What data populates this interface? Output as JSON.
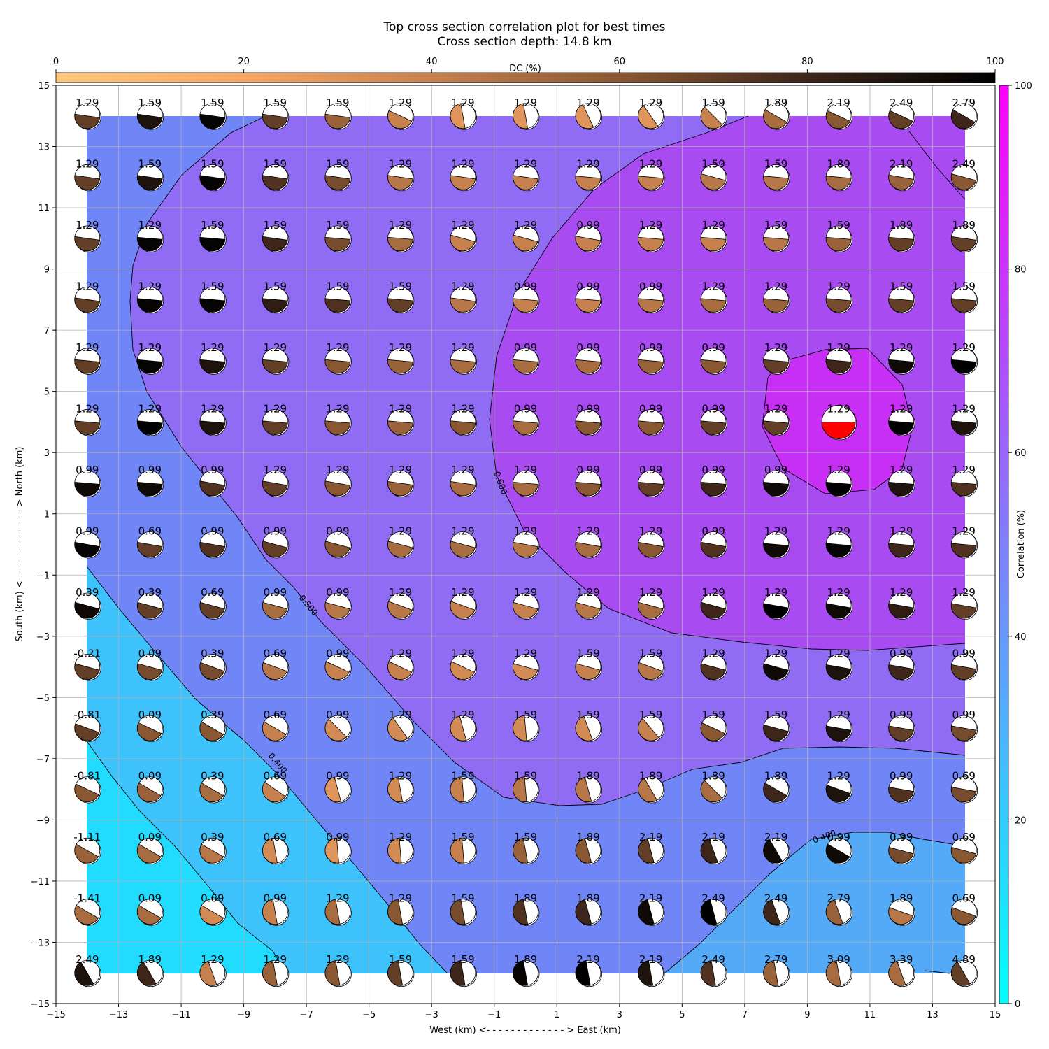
{
  "chart_data": {
    "type": "heatmap",
    "title": "Top cross section correlation plot for best times",
    "subtitle": "Cross section depth: 14.8 km",
    "xlabel": "West (km) <- - - - - - - - - - - - - > East (km)",
    "ylabel": "South (km) <- - - - - - - - - - - - > North (km)",
    "xlim": [
      -15,
      15
    ],
    "ylim": [
      -15,
      15
    ],
    "xticks": [
      "−15",
      "−13",
      "−11",
      "−9",
      "−7",
      "−5",
      "−3",
      "−1",
      "1",
      "3",
      "5",
      "7",
      "9",
      "11",
      "13",
      "15"
    ],
    "yticks": [
      "−15",
      "−13",
      "−11",
      "−9",
      "−7",
      "−5",
      "−3",
      "−1",
      "1",
      "3",
      "5",
      "7",
      "9",
      "11",
      "13",
      "15"
    ],
    "grid": true,
    "x": [
      -14,
      -12,
      -10,
      -8,
      -6,
      -4,
      -2,
      0,
      2,
      4,
      6,
      8,
      10,
      12,
      14
    ],
    "y": [
      14,
      12,
      10,
      8,
      6,
      4,
      2,
      0,
      -2,
      -4,
      -6,
      -8,
      -10,
      -12,
      -14
    ],
    "time_shift_labels": [
      [
        "1.29",
        "1.59",
        "1.59",
        "1.59",
        "1.59",
        "1.29",
        "1.29",
        "1.29",
        "1.29",
        "1.29",
        "1.59",
        "1.89",
        "2.19",
        "2.49",
        "2.79"
      ],
      [
        "1.29",
        "1.59",
        "1.59",
        "1.59",
        "1.59",
        "1.29",
        "1.29",
        "1.29",
        "1.29",
        "1.29",
        "1.59",
        "1.59",
        "1.89",
        "2.19",
        "2.49"
      ],
      [
        "1.29",
        "1.29",
        "1.59",
        "1.59",
        "1.59",
        "1.29",
        "1.29",
        "1.29",
        "0.99",
        "1.29",
        "1.29",
        "1.59",
        "1.59",
        "1.89",
        "1.89"
      ],
      [
        "1.29",
        "1.29",
        "1.59",
        "1.59",
        "1.59",
        "1.59",
        "1.29",
        "0.99",
        "0.99",
        "0.99",
        "1.29",
        "1.29",
        "1.29",
        "1.59",
        "1.59"
      ],
      [
        "1.29",
        "1.29",
        "1.29",
        "1.29",
        "1.29",
        "1.29",
        "1.29",
        "0.99",
        "0.99",
        "0.99",
        "0.99",
        "1.29",
        "1.29",
        "1.29",
        "1.29"
      ],
      [
        "1.29",
        "1.29",
        "1.29",
        "1.29",
        "1.29",
        "1.29",
        "1.29",
        "0.99",
        "0.99",
        "0.99",
        "0.99",
        "1.29",
        "1.29",
        "1.29",
        "1.29"
      ],
      [
        "0.99",
        "0.99",
        "0.99",
        "1.29",
        "1.29",
        "1.29",
        "1.29",
        "1.29",
        "0.99",
        "0.99",
        "0.99",
        "0.99",
        "1.29",
        "1.29",
        "1.29"
      ],
      [
        "0.99",
        "0.69",
        "0.99",
        "0.99",
        "0.99",
        "1.29",
        "1.29",
        "1.29",
        "1.29",
        "1.29",
        "0.99",
        "1.29",
        "1.29",
        "1.29",
        "1.29"
      ],
      [
        "0.39",
        "0.39",
        "0.69",
        "0.99",
        "0.99",
        "1.29",
        "1.29",
        "1.29",
        "1.29",
        "1.29",
        "1.29",
        "1.29",
        "1.29",
        "1.29",
        "1.29"
      ],
      [
        "-0.21",
        "0.09",
        "0.39",
        "0.69",
        "0.99",
        "1.29",
        "1.29",
        "1.29",
        "1.59",
        "1.59",
        "1.29",
        "1.29",
        "1.29",
        "0.99",
        "0.99"
      ],
      [
        "-0.81",
        "0.09",
        "0.39",
        "0.69",
        "0.99",
        "1.29",
        "1.29",
        "1.59",
        "1.59",
        "1.59",
        "1.59",
        "1.59",
        "1.29",
        "0.99",
        "0.99"
      ],
      [
        "-0.81",
        "0.09",
        "0.39",
        "0.69",
        "0.99",
        "1.29",
        "1.59",
        "1.59",
        "1.89",
        "1.89",
        "1.89",
        "1.89",
        "1.29",
        "0.99",
        "0.69"
      ],
      [
        "-1.11",
        "0.09",
        "0.39",
        "0.69",
        "0.99",
        "1.29",
        "1.59",
        "1.59",
        "1.89",
        "2.19",
        "2.19",
        "2.19",
        "0.99",
        "0.99",
        "0.69"
      ],
      [
        "-1.41",
        "0.09",
        "0.69",
        "0.99",
        "1.29",
        "1.29",
        "1.59",
        "1.89",
        "1.89",
        "2.19",
        "2.49",
        "2.49",
        "2.79",
        "1.89",
        "0.69"
      ],
      [
        "2.49",
        "1.89",
        "1.29",
        "1.29",
        "1.29",
        "1.59",
        "1.59",
        "1.89",
        "2.19",
        "2.19",
        "2.49",
        "2.79",
        "3.09",
        "3.39",
        "4.89"
      ]
    ],
    "dc_percent": [
      [
        70,
        90,
        98,
        70,
        55,
        40,
        30,
        30,
        30,
        30,
        40,
        50,
        60,
        70,
        80
      ],
      [
        70,
        90,
        98,
        75,
        65,
        45,
        40,
        40,
        40,
        40,
        45,
        45,
        50,
        55,
        60
      ],
      [
        70,
        98,
        98,
        80,
        65,
        50,
        40,
        40,
        40,
        40,
        40,
        45,
        55,
        70,
        70
      ],
      [
        70,
        98,
        98,
        85,
        75,
        70,
        45,
        40,
        40,
        45,
        50,
        55,
        65,
        70,
        70
      ],
      [
        70,
        98,
        90,
        70,
        60,
        55,
        50,
        50,
        50,
        55,
        60,
        70,
        80,
        95,
        100
      ],
      [
        70,
        100,
        90,
        70,
        60,
        55,
        60,
        50,
        60,
        60,
        70,
        70,
        0,
        100,
        90
      ],
      [
        95,
        95,
        75,
        70,
        60,
        55,
        50,
        50,
        60,
        70,
        80,
        95,
        100,
        90,
        75
      ],
      [
        98,
        70,
        75,
        70,
        60,
        50,
        50,
        45,
        50,
        60,
        75,
        95,
        98,
        80,
        75
      ],
      [
        95,
        70,
        70,
        50,
        45,
        45,
        40,
        40,
        45,
        50,
        80,
        100,
        95,
        85,
        70
      ],
      [
        70,
        65,
        65,
        45,
        40,
        40,
        35,
        35,
        40,
        45,
        75,
        95,
        90,
        80,
        70
      ],
      [
        70,
        60,
        60,
        40,
        35,
        35,
        35,
        35,
        35,
        40,
        60,
        80,
        90,
        70,
        65
      ],
      [
        60,
        55,
        50,
        40,
        30,
        35,
        40,
        45,
        45,
        45,
        50,
        80,
        90,
        75,
        65
      ],
      [
        55,
        50,
        45,
        35,
        30,
        35,
        40,
        55,
        60,
        70,
        80,
        95,
        95,
        65,
        60
      ],
      [
        50,
        50,
        35,
        40,
        50,
        60,
        65,
        75,
        80,
        95,
        100,
        80,
        55,
        45,
        60
      ],
      [
        90,
        80,
        40,
        55,
        60,
        70,
        80,
        98,
        100,
        90,
        75,
        55,
        50,
        50,
        70
      ]
    ],
    "fault_angle_deg": [
      [
        8,
        8,
        8,
        8,
        8,
        25,
        80,
        80,
        65,
        55,
        45,
        30,
        25,
        25,
        30
      ],
      [
        8,
        8,
        8,
        8,
        8,
        8,
        8,
        8,
        5,
        5,
        15,
        5,
        5,
        10,
        15
      ],
      [
        8,
        5,
        5,
        8,
        5,
        5,
        15,
        15,
        10,
        5,
        5,
        5,
        5,
        5,
        8
      ],
      [
        8,
        5,
        5,
        5,
        5,
        5,
        8,
        5,
        5,
        5,
        5,
        5,
        5,
        5,
        5
      ],
      [
        5,
        5,
        5,
        5,
        5,
        5,
        5,
        5,
        5,
        5,
        5,
        5,
        5,
        5,
        5
      ],
      [
        5,
        5,
        5,
        5,
        5,
        5,
        5,
        5,
        5,
        5,
        5,
        5,
        0,
        5,
        5
      ],
      [
        5,
        5,
        10,
        10,
        10,
        8,
        8,
        5,
        5,
        5,
        5,
        5,
        5,
        5,
        5
      ],
      [
        10,
        10,
        10,
        15,
        15,
        15,
        15,
        10,
        10,
        10,
        10,
        5,
        5,
        5,
        5
      ],
      [
        15,
        15,
        15,
        15,
        15,
        20,
        20,
        15,
        15,
        15,
        15,
        10,
        10,
        10,
        10
      ],
      [
        15,
        15,
        20,
        20,
        25,
        25,
        25,
        15,
        15,
        20,
        15,
        15,
        10,
        10,
        10
      ],
      [
        20,
        25,
        30,
        30,
        45,
        55,
        75,
        85,
        70,
        50,
        25,
        15,
        10,
        10,
        10
      ],
      [
        25,
        30,
        30,
        35,
        75,
        80,
        85,
        85,
        75,
        60,
        45,
        30,
        20,
        10,
        10
      ],
      [
        30,
        30,
        30,
        80,
        85,
        85,
        85,
        80,
        75,
        75,
        70,
        60,
        30,
        15,
        15
      ],
      [
        30,
        30,
        30,
        80,
        80,
        80,
        80,
        80,
        75,
        75,
        75,
        70,
        70,
        20,
        20
      ],
      [
        60,
        60,
        70,
        80,
        80,
        80,
        80,
        80,
        80,
        80,
        80,
        80,
        80,
        70,
        60
      ]
    ],
    "dc_colorbar": {
      "label": "DC (%)",
      "ticks": [
        "0",
        "20",
        "40",
        "60",
        "80",
        "100"
      ],
      "colors": [
        "#fec97f",
        "#f8a866",
        "#c6814f",
        "#8a5733",
        "#3e261a",
        "#000000"
      ]
    },
    "correlation_colorbar": {
      "label": "Correlation (%)",
      "ticks": [
        "0",
        "20",
        "40",
        "60",
        "80",
        "100"
      ],
      "colors": [
        "#00ffff",
        "#ff00ff"
      ]
    },
    "contour_labels": [
      "0.600",
      "0.500",
      "0.400",
      "0.400"
    ],
    "best_solution_color": "#ff0000",
    "background_color": "#ffffff"
  }
}
